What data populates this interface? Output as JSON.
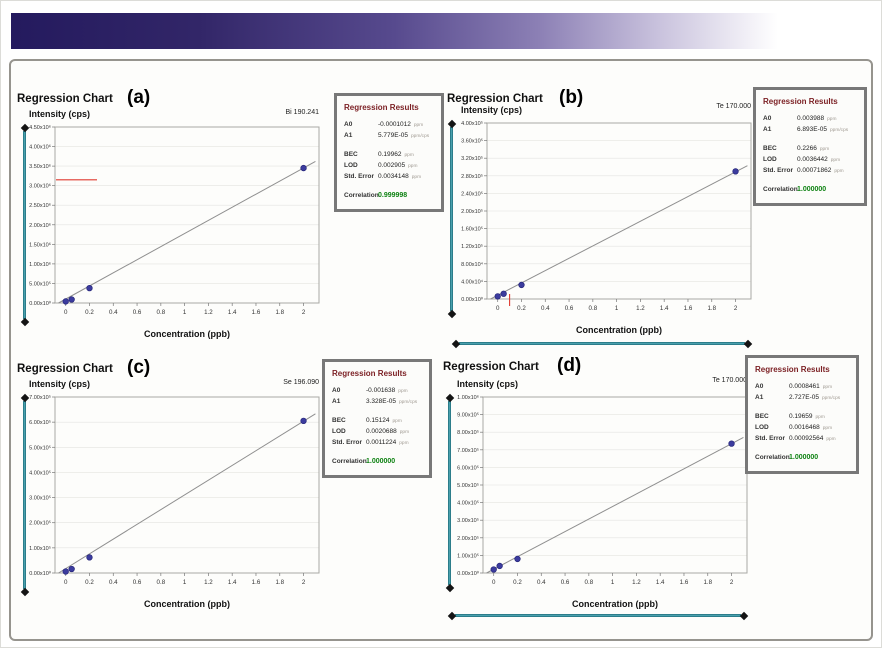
{
  "colors": {
    "banner_start": "#241a5e",
    "slider_teal": "#49a0ad",
    "point_blue": "#3c3c9e",
    "fit_line_gray": "#8f8f8f",
    "marker_red": "#e03a2f",
    "results_title_red": "#7c2125",
    "correlation_green": "#0e8212"
  },
  "chart_data": [
    {
      "type": "scatter",
      "title": "Regression Chart",
      "element": "Bi 190.241",
      "xlabel": "Concentration (ppb)",
      "ylabel": "Intensity (cps)",
      "x": [
        0,
        0.05,
        0.2,
        2
      ],
      "y": [
        40000,
        90000,
        380000,
        3450000
      ],
      "fit_line": {
        "x": [
          -0.06,
          2.1
        ],
        "y": [
          0,
          3620000
        ]
      },
      "xlim": [
        -0.09,
        2.13
      ],
      "ylim": [
        0,
        4500000
      ],
      "xticks": [
        {
          "v": 0,
          "label": "0"
        },
        {
          "v": 0.2,
          "label": "0.2"
        },
        {
          "v": 0.4,
          "label": "0.4"
        },
        {
          "v": 0.6,
          "label": "0.6"
        },
        {
          "v": 0.8,
          "label": "0.8"
        },
        {
          "v": 1,
          "label": "1"
        },
        {
          "v": 1.2,
          "label": "1.2"
        },
        {
          "v": 1.4,
          "label": "1.4"
        },
        {
          "v": 1.6,
          "label": "1.6"
        },
        {
          "v": 1.8,
          "label": "1.8"
        },
        {
          "v": 2,
          "label": "2"
        }
      ],
      "yticks": [
        {
          "v": 4500000,
          "label": "4.50x10⁶"
        },
        {
          "v": 4000000,
          "label": "4.00x10⁶"
        },
        {
          "v": 3500000,
          "label": "3.50x10⁶"
        },
        {
          "v": 3000000,
          "label": "3.00x10⁶"
        },
        {
          "v": 2500000,
          "label": "2.50x10⁶"
        },
        {
          "v": 2000000,
          "label": "2.00x10⁶"
        },
        {
          "v": 1500000,
          "label": "1.50x10⁶"
        },
        {
          "v": 1000000,
          "label": "1.00x10⁶"
        },
        {
          "v": 500000,
          "label": "5.00x10⁵"
        },
        {
          "v": 0,
          "label": "0.00x10⁰"
        }
      ],
      "marker": {
        "orientation": "h",
        "value": 3150000
      }
    },
    {
      "type": "scatter",
      "title": "Regression Chart",
      "element": "Te 170.000",
      "xlabel": "Concentration (ppb)",
      "ylabel": "Intensity (cps)",
      "x": [
        0,
        0.05,
        0.2,
        2
      ],
      "y": [
        6000,
        12000,
        32000,
        290000
      ],
      "fit_line": {
        "x": [
          -0.06,
          2.1
        ],
        "y": [
          0,
          303000
        ]
      },
      "xlim": [
        -0.09,
        2.13
      ],
      "ylim": [
        0,
        400000
      ],
      "xticks": [
        {
          "v": 0,
          "label": "0"
        },
        {
          "v": 0.2,
          "label": "0.2"
        },
        {
          "v": 0.4,
          "label": "0.4"
        },
        {
          "v": 0.6,
          "label": "0.6"
        },
        {
          "v": 0.8,
          "label": "0.8"
        },
        {
          "v": 1,
          "label": "1"
        },
        {
          "v": 1.2,
          "label": "1.2"
        },
        {
          "v": 1.4,
          "label": "1.4"
        },
        {
          "v": 1.6,
          "label": "1.6"
        },
        {
          "v": 1.8,
          "label": "1.8"
        },
        {
          "v": 2,
          "label": "2"
        }
      ],
      "yticks": [
        {
          "v": 400000,
          "label": "4.00x10⁵"
        },
        {
          "v": 360000,
          "label": "3.60x10⁵"
        },
        {
          "v": 320000,
          "label": "3.20x10⁵"
        },
        {
          "v": 280000,
          "label": "2.80x10⁵"
        },
        {
          "v": 240000,
          "label": "2.40x10⁵"
        },
        {
          "v": 200000,
          "label": "2.00x10⁵"
        },
        {
          "v": 160000,
          "label": "1.60x10⁵"
        },
        {
          "v": 120000,
          "label": "1.20x10⁵"
        },
        {
          "v": 80000,
          "label": "8.00x10⁴"
        },
        {
          "v": 40000,
          "label": "4.00x10⁴"
        },
        {
          "v": 0,
          "label": "0.00x10⁰"
        }
      ],
      "marker": {
        "orientation": "v",
        "value": 0.1
      }
    },
    {
      "type": "scatter",
      "title": "Regression Chart",
      "element": "Se 196.090",
      "xlabel": "Concentration (ppb)",
      "ylabel": "Intensity (cps)",
      "x": [
        0,
        0.05,
        0.2,
        2
      ],
      "y": [
        6000,
        16000,
        62000,
        605000
      ],
      "fit_line": {
        "x": [
          -0.06,
          2.1
        ],
        "y": [
          0,
          633000
        ]
      },
      "xlim": [
        -0.09,
        2.13
      ],
      "ylim": [
        0,
        700000
      ],
      "xticks": [
        {
          "v": 0,
          "label": "0"
        },
        {
          "v": 0.2,
          "label": "0.2"
        },
        {
          "v": 0.4,
          "label": "0.4"
        },
        {
          "v": 0.6,
          "label": "0.6"
        },
        {
          "v": 0.8,
          "label": "0.8"
        },
        {
          "v": 1,
          "label": "1"
        },
        {
          "v": 1.2,
          "label": "1.2"
        },
        {
          "v": 1.4,
          "label": "1.4"
        },
        {
          "v": 1.6,
          "label": "1.6"
        },
        {
          "v": 1.8,
          "label": "1.8"
        },
        {
          "v": 2,
          "label": "2"
        }
      ],
      "yticks": [
        {
          "v": 700000,
          "label": "7.00x10⁵"
        },
        {
          "v": 600000,
          "label": "6.00x10⁵"
        },
        {
          "v": 500000,
          "label": "5.00x10⁵"
        },
        {
          "v": 400000,
          "label": "4.00x10⁵"
        },
        {
          "v": 300000,
          "label": "3.00x10⁵"
        },
        {
          "v": 200000,
          "label": "2.00x10⁵"
        },
        {
          "v": 100000,
          "label": "1.00x10⁵"
        },
        {
          "v": 0,
          "label": "0.00x10⁰"
        }
      ],
      "marker": null
    },
    {
      "type": "scatter",
      "title": "Regression Chart",
      "element": "Te 170.000",
      "xlabel": "Concentration (ppb)",
      "ylabel": "Intensity (cps)",
      "x": [
        0,
        0.05,
        0.2,
        2
      ],
      "y": [
        20000,
        40000,
        80000,
        735000
      ],
      "fit_line": {
        "x": [
          -0.06,
          2.1
        ],
        "y": [
          0,
          770000
        ]
      },
      "xlim": [
        -0.09,
        2.13
      ],
      "ylim": [
        0,
        1000000
      ],
      "xticks": [
        {
          "v": 0,
          "label": "0"
        },
        {
          "v": 0.2,
          "label": "0.2"
        },
        {
          "v": 0.4,
          "label": "0.4"
        },
        {
          "v": 0.6,
          "label": "0.6"
        },
        {
          "v": 0.8,
          "label": "0.8"
        },
        {
          "v": 1,
          "label": "1"
        },
        {
          "v": 1.2,
          "label": "1.2"
        },
        {
          "v": 1.4,
          "label": "1.4"
        },
        {
          "v": 1.6,
          "label": "1.6"
        },
        {
          "v": 1.8,
          "label": "1.8"
        },
        {
          "v": 2,
          "label": "2"
        }
      ],
      "yticks": [
        {
          "v": 1000000,
          "label": "1.00x10⁶"
        },
        {
          "v": 900000,
          "label": "9.00x10⁵"
        },
        {
          "v": 800000,
          "label": "8.00x10⁵"
        },
        {
          "v": 700000,
          "label": "7.00x10⁵"
        },
        {
          "v": 600000,
          "label": "6.00x10⁵"
        },
        {
          "v": 500000,
          "label": "5.00x10⁵"
        },
        {
          "v": 400000,
          "label": "4.00x10⁵"
        },
        {
          "v": 300000,
          "label": "3.00x10⁵"
        },
        {
          "v": 200000,
          "label": "2.00x10⁵"
        },
        {
          "v": 100000,
          "label": "1.00x10⁵"
        },
        {
          "v": 0,
          "label": "0.00x10⁰"
        }
      ],
      "marker": null
    }
  ],
  "panels": [
    {
      "label": "(a)",
      "results": {
        "title": "Regression Results",
        "rows": [
          {
            "label": "A0",
            "value": "-0.0001012",
            "unit": "ppm"
          },
          {
            "label": "A1",
            "value": "5.779E-05",
            "unit": "ppm/cps"
          },
          {
            "label": "BEC",
            "value": "0.19962",
            "unit": "ppm"
          },
          {
            "label": "LOD",
            "value": "0.002905",
            "unit": "ppm"
          },
          {
            "label": "Std. Error",
            "value": "0.0034148",
            "unit": "ppm"
          }
        ],
        "correlation_label": "Correlation",
        "correlation_value": "0.999998"
      }
    },
    {
      "label": "(b)",
      "results": {
        "title": "Regression Results",
        "rows": [
          {
            "label": "A0",
            "value": "0.003988",
            "unit": "ppm"
          },
          {
            "label": "A1",
            "value": "6.893E-05",
            "unit": "ppm/cps"
          },
          {
            "label": "BEC",
            "value": "0.2266",
            "unit": "ppm"
          },
          {
            "label": "LOD",
            "value": "0.0036442",
            "unit": "ppm"
          },
          {
            "label": "Std. Error",
            "value": "0.00071862",
            "unit": "ppm"
          }
        ],
        "correlation_label": "Correlation",
        "correlation_value": "1.000000"
      }
    },
    {
      "label": "(c)",
      "results": {
        "title": "Regression Results",
        "rows": [
          {
            "label": "A0",
            "value": "-0.001638",
            "unit": "ppm"
          },
          {
            "label": "A1",
            "value": "3.328E-05",
            "unit": "ppm/cps"
          },
          {
            "label": "BEC",
            "value": "0.15124",
            "unit": "ppm"
          },
          {
            "label": "LOD",
            "value": "0.0020688",
            "unit": "ppm"
          },
          {
            "label": "Std. Error",
            "value": "0.0011224",
            "unit": "ppm"
          }
        ],
        "correlation_label": "Correlation",
        "correlation_value": "1.000000"
      }
    },
    {
      "label": "(d)",
      "results": {
        "title": "Regression Results",
        "rows": [
          {
            "label": "A0",
            "value": "0.0008461",
            "unit": "ppm"
          },
          {
            "label": "A1",
            "value": "2.727E-05",
            "unit": "ppm/cps"
          },
          {
            "label": "BEC",
            "value": "0.19659",
            "unit": "ppm"
          },
          {
            "label": "LOD",
            "value": "0.0016468",
            "unit": "ppm"
          },
          {
            "label": "Std. Error",
            "value": "0.00092564",
            "unit": "ppm"
          }
        ],
        "correlation_label": "Correlation",
        "correlation_value": "1.000000"
      }
    }
  ]
}
